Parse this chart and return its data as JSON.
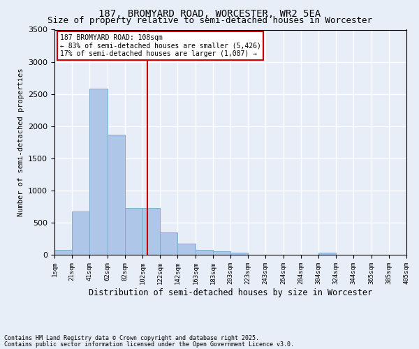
{
  "title": "187, BROMYARD ROAD, WORCESTER, WR2 5EA",
  "subtitle": "Size of property relative to semi-detached houses in Worcester",
  "xlabel": "Distribution of semi-detached houses by size in Worcester",
  "ylabel": "Number of semi-detached properties",
  "footnote1": "Contains HM Land Registry data © Crown copyright and database right 2025.",
  "footnote2": "Contains public sector information licensed under the Open Government Licence v3.0.",
  "annotation_title": "187 BROMYARD ROAD: 108sqm",
  "annotation_line1": "← 83% of semi-detached houses are smaller (5,426)",
  "annotation_line2": "17% of semi-detached houses are larger (1,087) →",
  "property_size": 108,
  "bar_edges": [
    1,
    21,
    41,
    62,
    82,
    102,
    122,
    142,
    163,
    183,
    203,
    223,
    243,
    264,
    284,
    304,
    324,
    344,
    365,
    385,
    405
  ],
  "bar_heights": [
    75,
    670,
    2580,
    1870,
    730,
    730,
    350,
    175,
    80,
    50,
    30,
    5,
    0,
    0,
    0,
    30,
    0,
    0,
    0,
    0
  ],
  "bar_color": "#aec6e8",
  "bar_edge_color": "#7aaed0",
  "vline_color": "#cc0000",
  "vline_x": 108,
  "annotation_box_color": "#cc0000",
  "ylim": [
    0,
    3500
  ],
  "yticks": [
    0,
    500,
    1000,
    1500,
    2000,
    2500,
    3000,
    3500
  ],
  "background_color": "#e8eef8",
  "grid_color": "#ffffff",
  "title_fontsize": 10,
  "subtitle_fontsize": 9
}
